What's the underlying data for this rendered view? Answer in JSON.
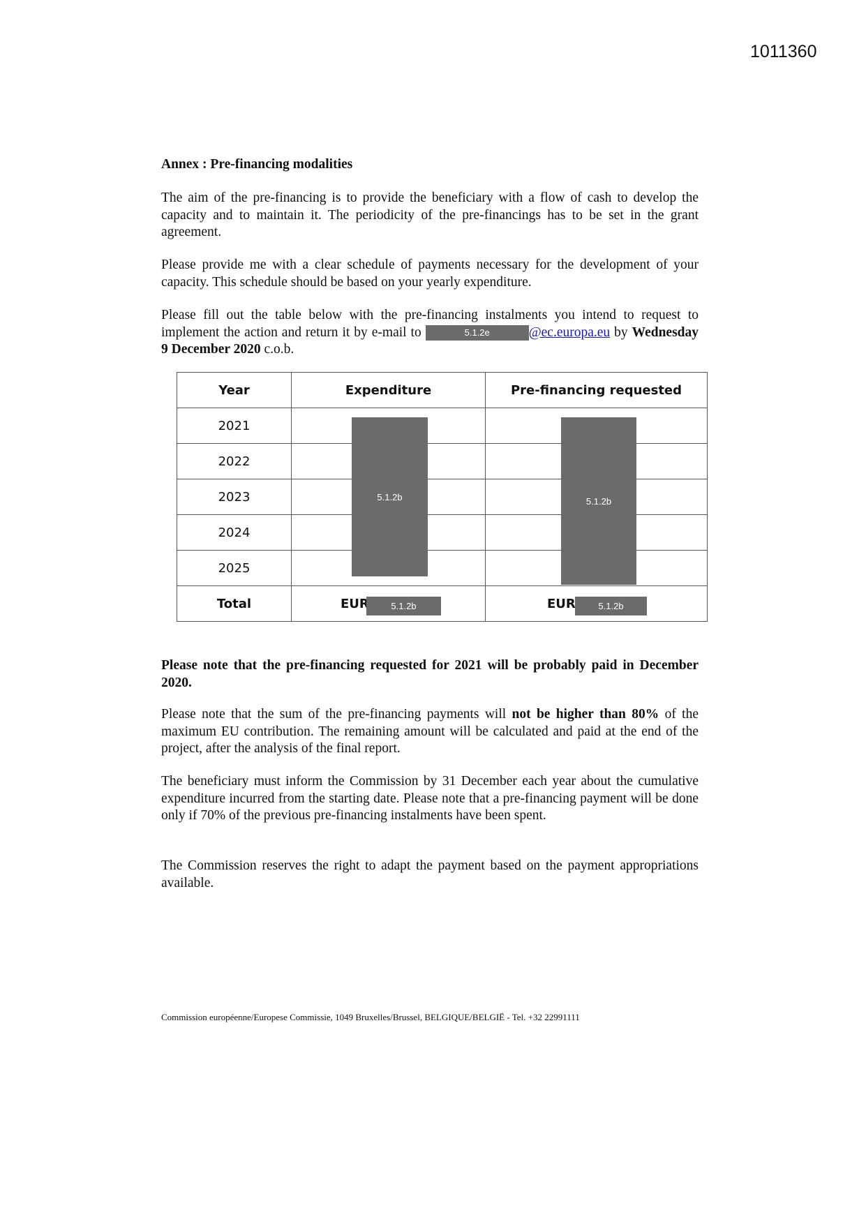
{
  "doc_number": "1011360",
  "heading": "Annex : Pre-financing modalities",
  "p1": "The aim of the pre-financing is to provide the beneficiary with a flow of cash to develop the capacity and to maintain it. The periodicity of the pre-financings has to be set in the grant agreement.",
  "p2": "Please provide me with a clear schedule of payments necessary for the development of your capacity. This schedule should be based on your yearly expenditure.",
  "p3": {
    "a": "Please fill out the table below with the pre-financing instalments you intend to request to implement the action and return it by e-mail to ",
    "redaction": "5.1.2e",
    "email": "@ec.europa.eu",
    "b": " by ",
    "date": "Wednesday 9 December 2020",
    "c": " c.o.b."
  },
  "table": {
    "headers": [
      "Year",
      "Expenditure",
      "Pre-financing requested"
    ],
    "years": [
      "2021",
      "2022",
      "2023",
      "2024",
      "2025"
    ],
    "total_label": "Total",
    "currency": "EUR",
    "redaction": "5.1.2b"
  },
  "note": "Please note that the pre-financing requested for 2021 will be probably paid in December 2020.",
  "p4": {
    "a": "Please note that the sum of the pre-financing payments will ",
    "bold": "not be higher than 80%",
    "b": " of the maximum EU contribution. The remaining amount will be calculated and paid at the end of the project, after the analysis of the final report."
  },
  "p5": "The beneficiary must inform the Commission by 31 December each year about the cumulative expenditure incurred from the starting date. Please note that a pre-financing payment will be done only if 70% of the previous pre-financing instalments have been spent.",
  "p6": "The Commission reserves the right to adapt the payment based on the payment appropriations available.",
  "footer": "Commission européenne/Europese Commissie, 1049 Bruxelles/Brussel, BELGIQUE/BELGIË - Tel. +32 22991111"
}
